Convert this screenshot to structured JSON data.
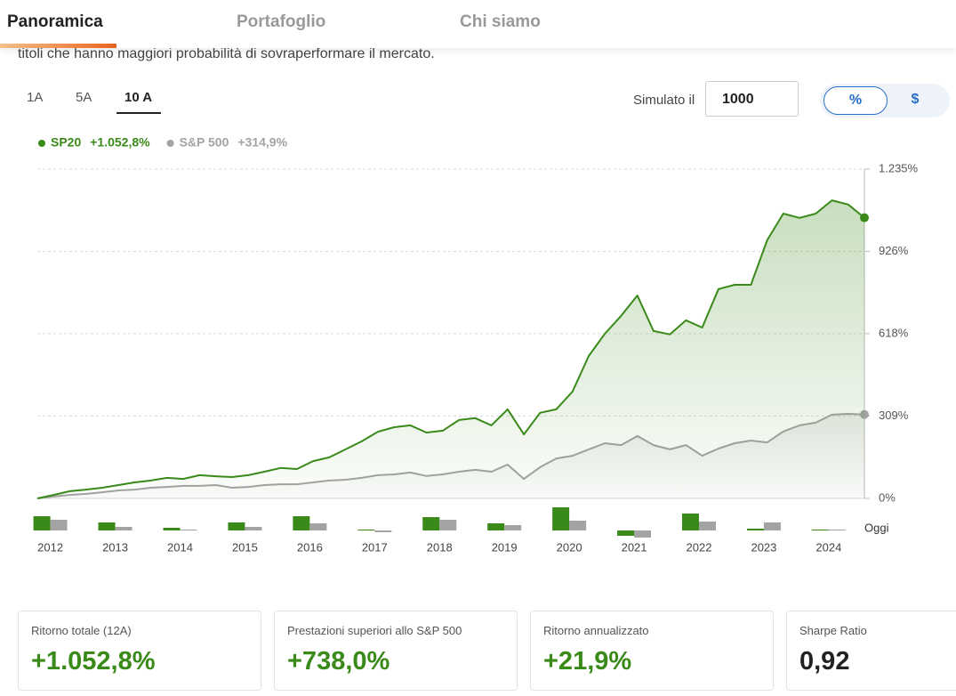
{
  "nav": {
    "tabs": [
      "Panoramica",
      "Portafoglio",
      "Chi siamo"
    ],
    "active": 0
  },
  "intro_text": "titoli che hanno maggiori probabilità di sovraperformare il mercato.",
  "periods": {
    "options": [
      "1A",
      "5A",
      "10 A"
    ],
    "active": 2
  },
  "simulate": {
    "label": "Simulato il",
    "amount": "1000",
    "units": [
      "%",
      "$"
    ],
    "active_unit": 0
  },
  "chart_data": {
    "type": "line",
    "x": [
      2011.8,
      2012.05,
      2012.3,
      2012.55,
      2012.8,
      2013.05,
      2013.3,
      2013.55,
      2013.8,
      2014.05,
      2014.3,
      2014.55,
      2014.8,
      2015.05,
      2015.3,
      2015.55,
      2015.8,
      2016.05,
      2016.3,
      2016.55,
      2016.8,
      2017.05,
      2017.3,
      2017.55,
      2017.8,
      2018.05,
      2018.3,
      2018.55,
      2018.8,
      2019.05,
      2019.3,
      2019.55,
      2019.8,
      2020.05,
      2020.3,
      2020.55,
      2020.8,
      2021.05,
      2021.3,
      2021.55,
      2021.8,
      2022.05,
      2022.3,
      2022.55,
      2022.8,
      2023.05,
      2023.3,
      2023.55,
      2023.8,
      2024.05,
      2024.3,
      2024.55
    ],
    "series": [
      {
        "name": "SP20",
        "color": "#3a8a1a",
        "value_label": "+1.052,8%",
        "values": [
          0,
          13,
          27,
          33,
          40,
          50,
          60,
          67,
          77,
          73,
          87,
          83,
          80,
          87,
          100,
          114,
          110,
          140,
          154,
          184,
          214,
          250,
          267,
          274,
          247,
          254,
          294,
          301,
          274,
          334,
          240,
          321,
          334,
          401,
          534,
          618,
          685,
          761,
          628,
          615,
          668,
          641,
          785,
          801,
          801,
          968,
          1068,
          1052,
          1068,
          1118,
          1102,
          1052.8
        ],
        "annual_values": [
          32,
          18,
          6,
          18,
          32,
          2,
          30,
          16,
          52,
          -12,
          38,
          4,
          2
        ]
      },
      {
        "name": "S&P 500",
        "color": "#a3a3a3",
        "value_label": "+314,9%",
        "values": [
          0,
          7,
          13,
          17,
          23,
          30,
          33,
          40,
          43,
          47,
          47,
          50,
          40,
          43,
          50,
          53,
          53,
          60,
          67,
          70,
          77,
          87,
          90,
          97,
          84,
          90,
          100,
          107,
          100,
          127,
          73,
          117,
          150,
          160,
          184,
          207,
          200,
          234,
          200,
          184,
          200,
          160,
          187,
          207,
          217,
          210,
          251,
          274,
          284,
          314,
          317,
          314.9
        ],
        "annual_values": [
          24,
          8,
          2,
          8,
          16,
          -4,
          24,
          12,
          22,
          -16,
          20,
          18,
          1
        ]
      }
    ],
    "xlim": [
      2011.8,
      2024.55
    ],
    "xticks": [
      2012,
      2013,
      2014,
      2015,
      2016,
      2017,
      2018,
      2019,
      2020,
      2021,
      2022,
      2023,
      2024
    ],
    "x_end_label": "Oggi",
    "ylim": [
      0,
      1235
    ],
    "yticks": [
      {
        "value": 0,
        "label": "0%"
      },
      {
        "value": 309,
        "label": "309%"
      },
      {
        "value": 618,
        "label": "618%"
      },
      {
        "value": 926,
        "label": "926%"
      },
      {
        "value": 1235,
        "label": "1.235%"
      }
    ],
    "grid": true
  },
  "cards": [
    {
      "label": "Ritorno totale (12A)",
      "value": "+1.052,8%",
      "tone": "positive"
    },
    {
      "label": "Prestazioni superiori allo S&P 500",
      "value": "+738,0%",
      "tone": "positive"
    },
    {
      "label": "Ritorno annualizzato",
      "value": "+21,9%",
      "tone": "positive"
    },
    {
      "label": "Sharpe Ratio",
      "value": "0,92",
      "tone": "neutral"
    }
  ]
}
